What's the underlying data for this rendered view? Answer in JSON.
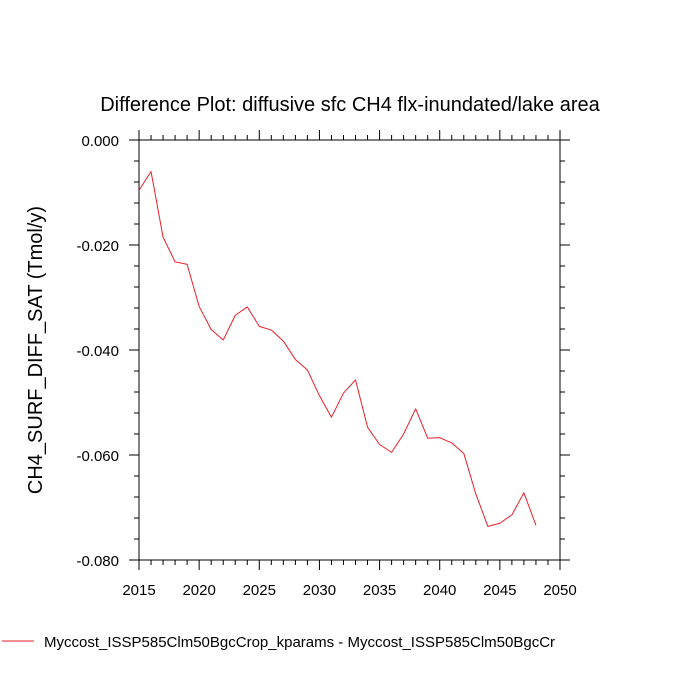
{
  "chart_data": {
    "type": "line",
    "title": "Difference Plot: diffusive sfc CH4 flx-inundated/lake area",
    "xlabel": "",
    "ylabel": "CH4_SURF_DIFF_SAT  (Tmol/y)",
    "xlim": [
      2015,
      2050
    ],
    "ylim": [
      -0.08,
      0.0
    ],
    "x_ticks": [
      2015,
      2020,
      2025,
      2030,
      2035,
      2040,
      2045,
      2050
    ],
    "x_tick_labels": [
      "2015",
      "2020",
      "2025",
      "2030",
      "2035",
      "2040",
      "2045",
      "2050"
    ],
    "y_ticks": [
      0.0,
      -0.02,
      -0.04,
      -0.06,
      -0.08
    ],
    "y_tick_labels": [
      "0.000",
      "-0.020",
      "-0.040",
      "-0.060",
      "-0.080"
    ],
    "grid": false,
    "legend_position": "bottom",
    "series": [
      {
        "name": "Myccost_ISSP585Clm50BgcCrop_kparams - Myccost_ISSP585Clm50BgcCr",
        "color": "#e8202a",
        "x": [
          2015,
          2016,
          2017,
          2018,
          2019,
          2020,
          2021,
          2022,
          2023,
          2024,
          2025,
          2026,
          2027,
          2028,
          2029,
          2030,
          2031,
          2032,
          2033,
          2034,
          2035,
          2036,
          2037,
          2038,
          2039,
          2040,
          2041,
          2042,
          2043,
          2044,
          2045,
          2046,
          2047,
          2048
        ],
        "y": [
          -0.0096,
          -0.006,
          -0.0185,
          -0.0232,
          -0.0237,
          -0.0317,
          -0.0361,
          -0.0381,
          -0.0334,
          -0.0318,
          -0.0355,
          -0.0362,
          -0.0383,
          -0.0418,
          -0.0438,
          -0.0487,
          -0.0528,
          -0.0482,
          -0.0457,
          -0.0547,
          -0.058,
          -0.0595,
          -0.056,
          -0.0512,
          -0.0568,
          -0.0567,
          -0.0577,
          -0.0597,
          -0.0674,
          -0.0736,
          -0.073,
          -0.0714,
          -0.0672,
          -0.0734
        ]
      }
    ]
  }
}
